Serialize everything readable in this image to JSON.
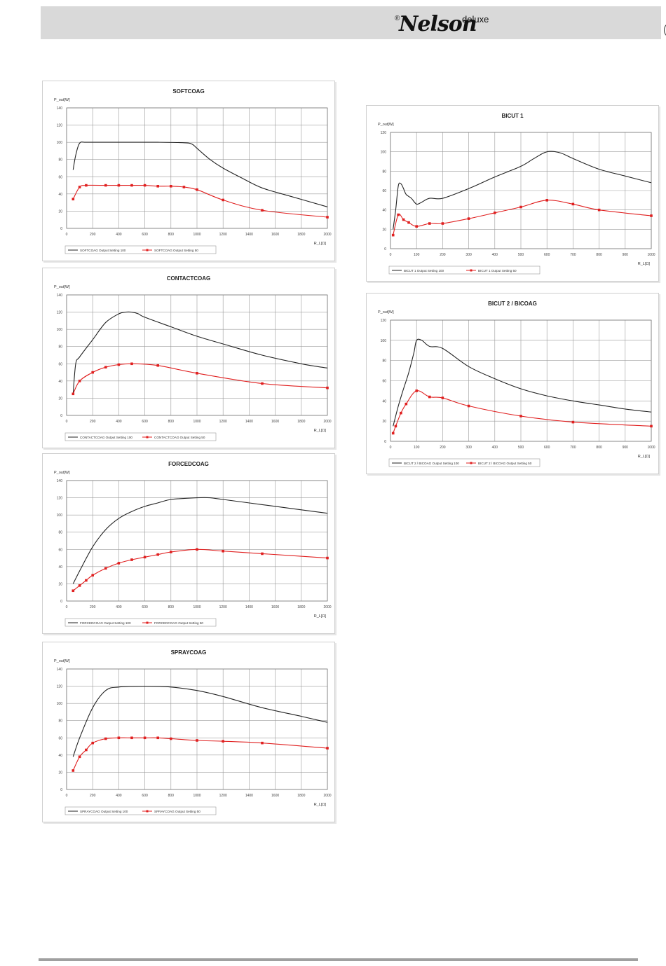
{
  "header": {
    "brand_reg": "®",
    "brand_name": "Nelson",
    "brand_suffix": "deluxe",
    "lang_badge": "P"
  },
  "colors": {
    "black_series": "#222222",
    "red_series": "#e02020",
    "grid": "#9a9a9a",
    "header_bg": "#d9d9d9"
  },
  "chart_data": [
    {
      "type": "line",
      "title": "SOFTCOAG",
      "ylabel": "P_out[W]",
      "xlabel": "R_L[Ω]",
      "xlim": [
        0,
        2000
      ],
      "ylim": [
        0,
        140
      ],
      "xticks": [
        0,
        200,
        400,
        600,
        800,
        1000,
        1200,
        1400,
        1600,
        1800,
        2000
      ],
      "yticks": [
        0,
        20,
        40,
        60,
        80,
        100,
        120,
        140
      ],
      "series": [
        {
          "name": "SOFTCOAG Output Setting 100",
          "color": "#222222",
          "markers": false,
          "points": [
            [
              50,
              68
            ],
            [
              70,
              85
            ],
            [
              100,
              99
            ],
            [
              150,
              100
            ],
            [
              300,
              100
            ],
            [
              500,
              100
            ],
            [
              700,
              100
            ],
            [
              900,
              99.5
            ],
            [
              960,
              98
            ],
            [
              1000,
              93
            ],
            [
              1100,
              80
            ],
            [
              1200,
              70
            ],
            [
              1350,
              58
            ],
            [
              1500,
              47
            ],
            [
              1700,
              38
            ],
            [
              2000,
              25
            ]
          ]
        },
        {
          "name": "SOFTCOAG Output Setting 50",
          "color": "#e02020",
          "markers": true,
          "points": [
            [
              50,
              34
            ],
            [
              100,
              48
            ],
            [
              150,
              50
            ],
            [
              300,
              50
            ],
            [
              400,
              50
            ],
            [
              500,
              50
            ],
            [
              600,
              50
            ],
            [
              700,
              49
            ],
            [
              800,
              49
            ],
            [
              900,
              48
            ],
            [
              1000,
              45
            ],
            [
              1200,
              33
            ],
            [
              1500,
              21
            ],
            [
              2000,
              13
            ]
          ]
        }
      ]
    },
    {
      "type": "line",
      "title": "CONTACTCOAG",
      "ylabel": "P_out[W]",
      "xlabel": "R_L[Ω]",
      "xlim": [
        0,
        2000
      ],
      "ylim": [
        0,
        140
      ],
      "xticks": [
        0,
        200,
        400,
        600,
        800,
        1000,
        1200,
        1400,
        1600,
        1800,
        2000
      ],
      "yticks": [
        0,
        20,
        40,
        60,
        80,
        100,
        120,
        140
      ],
      "series": [
        {
          "name": "CONTACTCOAG Output Setting 100",
          "color": "#222222",
          "markers": false,
          "points": [
            [
              50,
              25
            ],
            [
              70,
              60
            ],
            [
              100,
              68
            ],
            [
              200,
              88
            ],
            [
              300,
              108
            ],
            [
              400,
              118
            ],
            [
              450,
              120
            ],
            [
              500,
              120
            ],
            [
              550,
              118
            ],
            [
              600,
              114
            ],
            [
              800,
              103
            ],
            [
              1000,
              92
            ],
            [
              1200,
              83
            ],
            [
              1500,
              70
            ],
            [
              1800,
              60
            ],
            [
              2000,
              55
            ]
          ]
        },
        {
          "name": "CONTACTCOAG Output Setting 50",
          "color": "#e02020",
          "markers": true,
          "points": [
            [
              50,
              25
            ],
            [
              100,
              40
            ],
            [
              200,
              50
            ],
            [
              300,
              56
            ],
            [
              400,
              59
            ],
            [
              500,
              60
            ],
            [
              700,
              58
            ],
            [
              1000,
              49
            ],
            [
              1500,
              37
            ],
            [
              2000,
              32
            ]
          ]
        }
      ]
    },
    {
      "type": "line",
      "title": "FORCEDCOAG",
      "ylabel": "P_out[W]",
      "xlabel": "R_L[Ω]",
      "xlim": [
        0,
        2000
      ],
      "ylim": [
        0,
        140
      ],
      "xticks": [
        0,
        200,
        400,
        600,
        800,
        1000,
        1200,
        1400,
        1600,
        1800,
        2000
      ],
      "yticks": [
        0,
        20,
        40,
        60,
        80,
        100,
        120,
        140
      ],
      "series": [
        {
          "name": "FORCEDCOAG Output Setting 100",
          "color": "#222222",
          "markers": false,
          "points": [
            [
              50,
              20
            ],
            [
              100,
              35
            ],
            [
              200,
              63
            ],
            [
              300,
              83
            ],
            [
              400,
              96
            ],
            [
              500,
              104
            ],
            [
              600,
              110
            ],
            [
              700,
              114
            ],
            [
              800,
              118
            ],
            [
              1000,
              120
            ],
            [
              1100,
              120
            ],
            [
              1200,
              118
            ],
            [
              1500,
              112
            ],
            [
              1800,
              106
            ],
            [
              2000,
              102
            ]
          ]
        },
        {
          "name": "FORCEDCOAG Output Setting 50",
          "color": "#e02020",
          "markers": true,
          "points": [
            [
              50,
              12
            ],
            [
              100,
              18
            ],
            [
              150,
              24
            ],
            [
              200,
              30
            ],
            [
              300,
              38
            ],
            [
              400,
              44
            ],
            [
              500,
              48
            ],
            [
              600,
              51
            ],
            [
              700,
              54
            ],
            [
              800,
              57
            ],
            [
              1000,
              60
            ],
            [
              1200,
              58
            ],
            [
              1500,
              55
            ],
            [
              2000,
              50
            ]
          ]
        }
      ]
    },
    {
      "type": "line",
      "title": "SPRAYCOAG",
      "ylabel": "P_out[W]",
      "xlabel": "R_L[Ω]",
      "xlim": [
        0,
        2000
      ],
      "ylim": [
        0,
        140
      ],
      "xticks": [
        0,
        200,
        400,
        600,
        800,
        1000,
        1200,
        1400,
        1600,
        1800,
        2000
      ],
      "yticks": [
        0,
        20,
        40,
        60,
        80,
        100,
        120,
        140
      ],
      "series": [
        {
          "name": "SPRAYCOAG Output Setting 100",
          "color": "#222222",
          "markers": false,
          "points": [
            [
              50,
              38
            ],
            [
              100,
              60
            ],
            [
              200,
              95
            ],
            [
              300,
              115
            ],
            [
              400,
              119
            ],
            [
              600,
              120
            ],
            [
              800,
              119
            ],
            [
              1000,
              115
            ],
            [
              1200,
              108
            ],
            [
              1500,
              95
            ],
            [
              1800,
              85
            ],
            [
              2000,
              78
            ]
          ]
        },
        {
          "name": "SPRAYCOAG Output Setting 50",
          "color": "#e02020",
          "markers": true,
          "points": [
            [
              50,
              22
            ],
            [
              100,
              38
            ],
            [
              150,
              46
            ],
            [
              200,
              54
            ],
            [
              300,
              59
            ],
            [
              400,
              60
            ],
            [
              500,
              60
            ],
            [
              600,
              60
            ],
            [
              700,
              60
            ],
            [
              800,
              59
            ],
            [
              1000,
              57
            ],
            [
              1200,
              56
            ],
            [
              1500,
              54
            ],
            [
              2000,
              48
            ]
          ]
        }
      ]
    },
    {
      "type": "line",
      "title": "BICUT 1",
      "ylabel": "P_out[W]",
      "xlabel": "R_L[Ω]",
      "xlim": [
        0,
        1000
      ],
      "ylim": [
        0,
        120
      ],
      "xticks": [
        0,
        100,
        200,
        300,
        400,
        500,
        600,
        700,
        800,
        900,
        1000
      ],
      "yticks": [
        0,
        20,
        40,
        60,
        80,
        100,
        120
      ],
      "series": [
        {
          "name": "BICUT 1 Output Setting 100",
          "color": "#222222",
          "markers": false,
          "points": [
            [
              10,
              20
            ],
            [
              20,
              40
            ],
            [
              30,
              65
            ],
            [
              40,
              67
            ],
            [
              50,
              62
            ],
            [
              60,
              56
            ],
            [
              80,
              52
            ],
            [
              100,
              46
            ],
            [
              120,
              48
            ],
            [
              150,
              52
            ],
            [
              200,
              52
            ],
            [
              300,
              62
            ],
            [
              400,
              74
            ],
            [
              500,
              85
            ],
            [
              550,
              93
            ],
            [
              600,
              100
            ],
            [
              650,
              99
            ],
            [
              700,
              93
            ],
            [
              800,
              82
            ],
            [
              900,
              75
            ],
            [
              1000,
              68
            ]
          ]
        },
        {
          "name": "BICUT 1 Output Setting 50",
          "color": "#e02020",
          "markers": true,
          "points": [
            [
              10,
              14
            ],
            [
              30,
              35
            ],
            [
              50,
              30
            ],
            [
              70,
              27
            ],
            [
              100,
              23
            ],
            [
              150,
              26
            ],
            [
              200,
              26
            ],
            [
              300,
              31
            ],
            [
              400,
              37
            ],
            [
              500,
              43
            ],
            [
              600,
              50
            ],
            [
              700,
              46
            ],
            [
              800,
              40
            ],
            [
              1000,
              34
            ]
          ]
        }
      ]
    },
    {
      "type": "line",
      "title": "BICUT 2 / BICOAG",
      "ylabel": "P_out[W]",
      "xlabel": "R_L[Ω]",
      "xlim": [
        0,
        1000
      ],
      "ylim": [
        0,
        120
      ],
      "xticks": [
        0,
        100,
        200,
        300,
        400,
        500,
        600,
        700,
        800,
        900,
        1000
      ],
      "yticks": [
        0,
        20,
        40,
        60,
        80,
        100,
        120
      ],
      "series": [
        {
          "name": "BICUT 2 / BICOAG Output Setting 100",
          "color": "#222222",
          "markers": false,
          "points": [
            [
              10,
              15
            ],
            [
              30,
              35
            ],
            [
              50,
              52
            ],
            [
              70,
              68
            ],
            [
              90,
              88
            ],
            [
              100,
              100
            ],
            [
              120,
              100
            ],
            [
              150,
              94
            ],
            [
              200,
              92
            ],
            [
              300,
              74
            ],
            [
              400,
              62
            ],
            [
              500,
              52
            ],
            [
              600,
              45
            ],
            [
              700,
              40
            ],
            [
              800,
              36
            ],
            [
              900,
              32
            ],
            [
              1000,
              29
            ]
          ]
        },
        {
          "name": "BICUT 2 / BICOAG Output Setting 50",
          "color": "#e02020",
          "markers": true,
          "points": [
            [
              10,
              8
            ],
            [
              20,
              15
            ],
            [
              40,
              28
            ],
            [
              60,
              37
            ],
            [
              100,
              50
            ],
            [
              150,
              44
            ],
            [
              200,
              43
            ],
            [
              300,
              35
            ],
            [
              500,
              25
            ],
            [
              700,
              19
            ],
            [
              1000,
              15
            ]
          ]
        }
      ]
    }
  ]
}
